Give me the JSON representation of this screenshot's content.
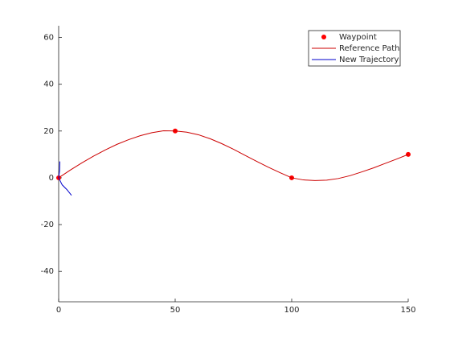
{
  "chart_data": {
    "type": "line",
    "xlim": [
      0,
      150
    ],
    "xticks": [
      0,
      50,
      100,
      150
    ],
    "ylim": [
      -53,
      65
    ],
    "yticks": [
      -40,
      -20,
      0,
      20,
      40,
      60
    ],
    "grid": false,
    "legend": "northeast",
    "series": [
      {
        "name": "Waypoint",
        "color": "#ff0000",
        "marker": "circle",
        "line": false,
        "x": [
          0,
          50,
          100,
          150
        ],
        "values": [
          0,
          20,
          0,
          10
        ]
      },
      {
        "name": "Reference Path",
        "color": "#cc0000",
        "marker": "none",
        "line": true,
        "x": [
          0,
          5,
          10,
          15,
          20,
          25,
          30,
          35,
          40,
          45,
          50,
          55,
          60,
          65,
          70,
          75,
          80,
          85,
          90,
          95,
          100,
          105,
          110,
          115,
          120,
          125,
          130,
          135,
          140,
          145,
          150
        ],
        "values": [
          0,
          3.3,
          6.4,
          9.3,
          11.9,
          14.3,
          16.3,
          18.0,
          19.3,
          20.1,
          20.0,
          19.5,
          18.4,
          16.7,
          14.6,
          12.2,
          9.6,
          7.0,
          4.5,
          2.2,
          0,
          -0.9,
          -1.2,
          -1.0,
          -0.3,
          0.9,
          2.5,
          4.2,
          6.1,
          8.0,
          10
        ]
      },
      {
        "name": "New Trajectory",
        "color": "#0000cc",
        "marker": "none",
        "line": true,
        "x": [
          0.5,
          0.4,
          0,
          1.5,
          3.5,
          5.5
        ],
        "values": [
          7,
          3,
          0,
          -3,
          -5,
          -7.5
        ]
      }
    ]
  }
}
